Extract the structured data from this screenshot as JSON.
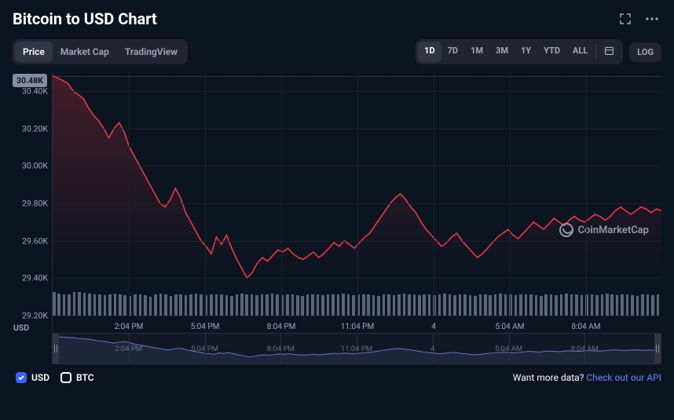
{
  "header": {
    "title": "Bitcoin to USD Chart"
  },
  "tabs": {
    "left": [
      {
        "label": "Price",
        "active": true
      },
      {
        "label": "Market Cap",
        "active": false
      },
      {
        "label": "TradingView",
        "active": false
      }
    ],
    "ranges": [
      {
        "label": "1D",
        "active": true
      },
      {
        "label": "7D",
        "active": false
      },
      {
        "label": "1M",
        "active": false
      },
      {
        "label": "3M",
        "active": false
      },
      {
        "label": "1Y",
        "active": false
      },
      {
        "label": "YTD",
        "active": false
      },
      {
        "label": "ALL",
        "active": false
      }
    ],
    "log_label": "LOG"
  },
  "chart": {
    "type": "line",
    "current_badge": "30.48K",
    "y_unit_label": "USD",
    "line_color": "#ea3943",
    "area_top_color": "rgba(234,57,67,0.25)",
    "area_bottom_color": "rgba(234,57,67,0.0)",
    "volume_color": "#a1a7bb",
    "background_color": "#0d1421",
    "grid_color": "#1c2030",
    "dotted_line_color": "#555555",
    "axis_text_color": "#a1a7bb",
    "y_min": 29200,
    "y_max": 30500,
    "y_ticks": [
      {
        "value": 30400,
        "label": "30.40K"
      },
      {
        "value": 30200,
        "label": "30.20K"
      },
      {
        "value": 30000,
        "label": "30.00K"
      },
      {
        "value": 29800,
        "label": "29.80K"
      },
      {
        "value": 29600,
        "label": "29.60K"
      },
      {
        "value": 29400,
        "label": "29.40K"
      },
      {
        "value": 29200,
        "label": "29.20K"
      }
    ],
    "dotted_y_value": 30480,
    "x_ticks": [
      {
        "pos": 0.125,
        "label": "2:04 PM"
      },
      {
        "pos": 0.25,
        "label": "5:04 PM"
      },
      {
        "pos": 0.375,
        "label": "8:04 PM"
      },
      {
        "pos": 0.5,
        "label": "11:04 PM"
      },
      {
        "pos": 0.625,
        "label": "4"
      },
      {
        "pos": 0.75,
        "label": "5:04 AM"
      },
      {
        "pos": 0.875,
        "label": "8:04 AM"
      }
    ],
    "series": [
      30480,
      30470,
      30455,
      30440,
      30400,
      30380,
      30360,
      30310,
      30270,
      30240,
      30200,
      30150,
      30200,
      30230,
      30180,
      30100,
      30050,
      30000,
      29950,
      29900,
      29850,
      29800,
      29780,
      29820,
      29880,
      29830,
      29750,
      29700,
      29650,
      29600,
      29570,
      29530,
      29620,
      29580,
      29630,
      29560,
      29500,
      29450,
      29400,
      29430,
      29480,
      29510,
      29490,
      29520,
      29550,
      29540,
      29560,
      29530,
      29510,
      29500,
      29520,
      29540,
      29510,
      29530,
      29560,
      29590,
      29570,
      29600,
      29580,
      29560,
      29590,
      29620,
      29640,
      29680,
      29720,
      29760,
      29800,
      29830,
      29850,
      29820,
      29780,
      29750,
      29700,
      29660,
      29630,
      29600,
      29570,
      29590,
      29620,
      29640,
      29600,
      29570,
      29540,
      29510,
      29530,
      29560,
      29590,
      29620,
      29640,
      29660,
      29630,
      29610,
      29640,
      29670,
      29700,
      29680,
      29660,
      29690,
      29720,
      29700,
      29680,
      29710,
      29730,
      29710,
      29700,
      29720,
      29740,
      29730,
      29710,
      29730,
      29760,
      29780,
      29760,
      29740,
      29760,
      29780,
      29770,
      29750,
      29770,
      29760
    ],
    "volume_max": 1.0,
    "volume": [
      0.78,
      0.74,
      0.7,
      0.72,
      0.78,
      0.8,
      0.76,
      0.74,
      0.72,
      0.7,
      0.68,
      0.72,
      0.74,
      0.7,
      0.68,
      0.66,
      0.7,
      0.72,
      0.68,
      0.64,
      0.7,
      0.74,
      0.7,
      0.66,
      0.72,
      0.7,
      0.68,
      0.72,
      0.74,
      0.7,
      0.68,
      0.72,
      0.7,
      0.72,
      0.68,
      0.66,
      0.7,
      0.74,
      0.72,
      0.7,
      0.68,
      0.72,
      0.7,
      0.74,
      0.7,
      0.68,
      0.72,
      0.7,
      0.68,
      0.66,
      0.7,
      0.72,
      0.7,
      0.68,
      0.72,
      0.7,
      0.72,
      0.74,
      0.7,
      0.68,
      0.72,
      0.7,
      0.72,
      0.68,
      0.66,
      0.7,
      0.72,
      0.68,
      0.7,
      0.74,
      0.72,
      0.7,
      0.68,
      0.72,
      0.7,
      0.68,
      0.72,
      0.74,
      0.7,
      0.68,
      0.72,
      0.7,
      0.68,
      0.66,
      0.7,
      0.72,
      0.68,
      0.7,
      0.74,
      0.72,
      0.7,
      0.68,
      0.72,
      0.7,
      0.72,
      0.68,
      0.66,
      0.7,
      0.72,
      0.68,
      0.7,
      0.74,
      0.72,
      0.7,
      0.68,
      0.72,
      0.7,
      0.68,
      0.72,
      0.74,
      0.7,
      0.68,
      0.72,
      0.7,
      0.68,
      0.66,
      0.7,
      0.72,
      0.68,
      0.7
    ],
    "watermark": "CoinMarketCap"
  },
  "minimap": {
    "line_color": "#5b7cc8",
    "x_ticks": [
      {
        "pos": 0.125,
        "label": "2:04 PM"
      },
      {
        "pos": 0.25,
        "label": "5:04 PM"
      },
      {
        "pos": 0.375,
        "label": "8:04 PM"
      },
      {
        "pos": 0.5,
        "label": "11:04 PM"
      },
      {
        "pos": 0.625,
        "label": "4"
      },
      {
        "pos": 0.75,
        "label": "5:04 AM"
      },
      {
        "pos": 0.875,
        "label": "8:04 AM"
      }
    ]
  },
  "legend": {
    "items": [
      {
        "label": "USD",
        "color": "#3861fb",
        "checked": true
      },
      {
        "label": "BTC",
        "color": "#ffffff",
        "checked": false
      }
    ]
  },
  "footer_cta": {
    "text": "Want more data? ",
    "link_text": "Check out our API"
  }
}
